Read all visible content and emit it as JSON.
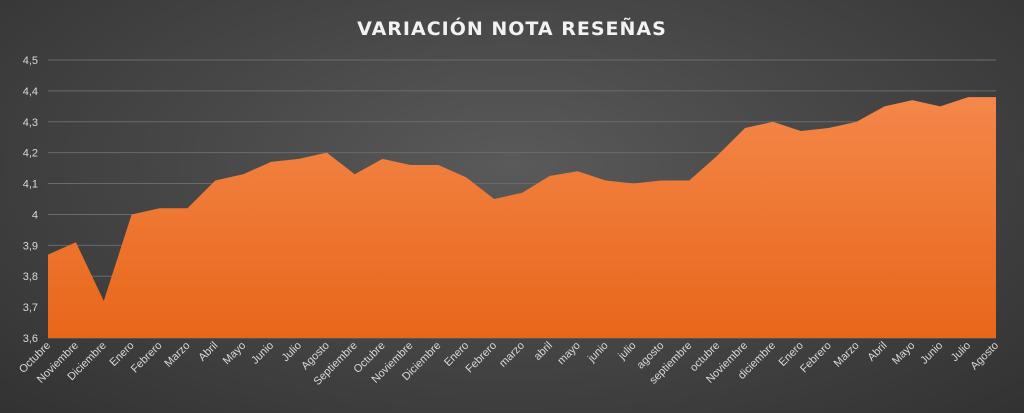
{
  "chart_data": {
    "type": "area",
    "title": "VARIACIÓN NOTA RESEÑAS",
    "xlabel": "",
    "ylabel": "",
    "ylim": [
      3.6,
      4.5
    ],
    "yticks": [
      "3,6",
      "3,7",
      "3,8",
      "3,9",
      "4",
      "4,1",
      "4,2",
      "4,3",
      "4,4",
      "4,5"
    ],
    "grid": true,
    "legend": "none",
    "colors": {
      "area_top": "#f4874a",
      "area_bottom": "#e8661a",
      "grid": "#6a6a6a",
      "text": "#d9d9d9"
    },
    "categories": [
      "Octubre",
      "Noviembre",
      "Diciembre",
      "Enero",
      "Febrero",
      "Marzo",
      "Abril",
      "Mayo",
      "Junio",
      "Julio",
      "Agosto",
      "Septiembre",
      "Octubre",
      "Noviembre",
      "Diciembre",
      "Enero",
      "Febrero",
      "marzo",
      "abril",
      "mayo",
      "junio",
      "julio",
      "agosto",
      "septiembre",
      "octubre",
      "Noviembre",
      "diciembre",
      "Enero",
      "Febrero",
      "Marzo",
      "Abril",
      "Mayo",
      "Junio",
      "Julio",
      "Agosto"
    ],
    "values": [
      3.87,
      3.91,
      3.72,
      4.0,
      4.02,
      4.02,
      4.11,
      4.13,
      4.17,
      4.18,
      4.2,
      4.13,
      4.18,
      4.16,
      4.16,
      4.12,
      4.05,
      4.07,
      4.125,
      4.14,
      4.11,
      4.1,
      4.11,
      4.11,
      4.19,
      4.28,
      4.3,
      4.27,
      4.28,
      4.3,
      4.35,
      4.37,
      4.35,
      4.38,
      4.38
    ]
  }
}
